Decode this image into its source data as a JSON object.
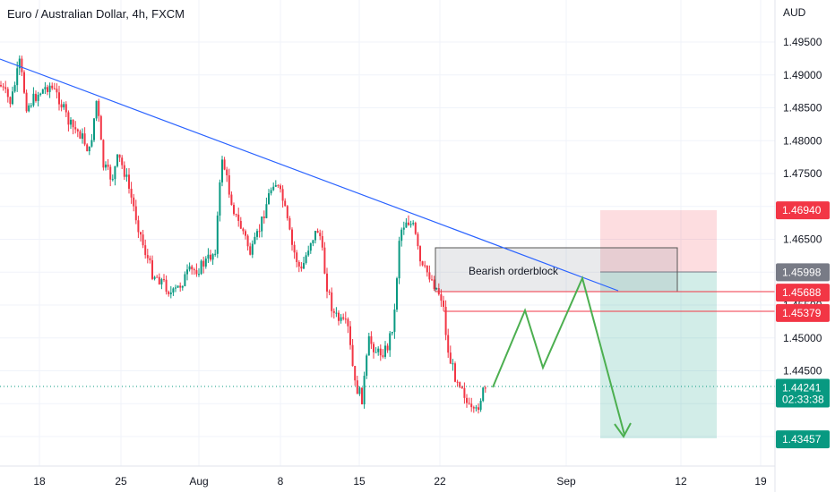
{
  "chart_data": {
    "type": "candlestick",
    "title": "Euro / Australian Dollar, 4h, FXCM",
    "currency": "AUD",
    "ylim": [
      1.4315,
      1.4985
    ],
    "y_ticks": [
      "1.49500",
      "1.49000",
      "1.48500",
      "1.48000",
      "1.47500",
      "1.47000",
      "1.46500",
      "1.46000",
      "1.45500",
      "1.45000",
      "1.44500",
      "1.44000",
      "1.43500"
    ],
    "x_ticks": [
      "18",
      "25",
      "Aug",
      "8",
      "15",
      "22",
      "Sep",
      "12",
      "19"
    ],
    "price_labels": [
      {
        "value": "1.46940",
        "color": "#f23645"
      },
      {
        "value": "1.45998",
        "color": "#787b86"
      },
      {
        "value": "1.45688",
        "color": "#f23645"
      },
      {
        "value": "1.45379",
        "color": "#f23645"
      },
      {
        "value": "1.44241",
        "sub": "02:33:38",
        "color": "#089981"
      },
      {
        "value": "1.43457",
        "color": "#089981"
      }
    ],
    "annotations": {
      "orderblock_label": "Bearish orderblock"
    },
    "colors": {
      "up": "#089981",
      "down": "#f23645",
      "trendline": "#2962ff",
      "projection": "#4caf50"
    }
  }
}
